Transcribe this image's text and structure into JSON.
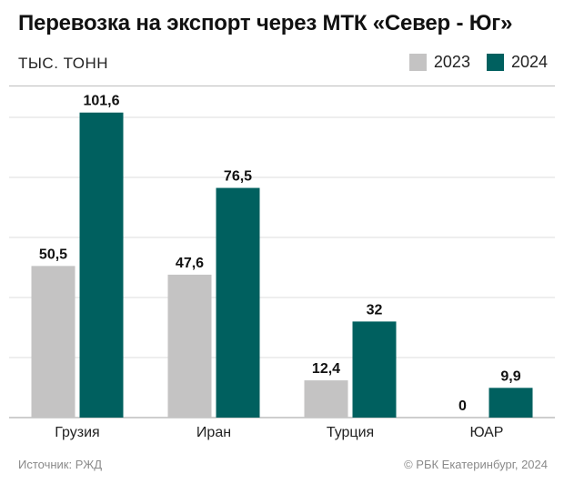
{
  "title": "Перевозка на экспорт через МТК «Север - Юг»",
  "units": "ТЫС. ТОНН",
  "legend": [
    {
      "label": "2023",
      "color": "#c4c3c3"
    },
    {
      "label": "2024",
      "color": "#00605f"
    }
  ],
  "source": "Источник: РЖД",
  "copyright": "© РБК Екатеринбург, 2024",
  "chart_data": {
    "type": "bar",
    "title": "Перевозка на экспорт через МТК «Север - Юг»",
    "ylabel": "ТЫС. ТОНН",
    "xlabel": "",
    "categories": [
      "Грузия",
      "Иран",
      "Турция",
      "ЮАР"
    ],
    "series": [
      {
        "name": "2023",
        "values": [
          50.5,
          47.6,
          12.4,
          0
        ],
        "labels": [
          "50,5",
          "47,6",
          "12,4",
          "0"
        ],
        "color": "#c4c3c3"
      },
      {
        "name": "2024",
        "values": [
          101.6,
          76.5,
          32,
          9.9
        ],
        "labels": [
          "101,6",
          "76,5",
          "32",
          "9,9"
        ],
        "color": "#00605f"
      }
    ],
    "ylim": [
      0,
      110
    ],
    "grid": true,
    "legend_position": "top-right"
  }
}
